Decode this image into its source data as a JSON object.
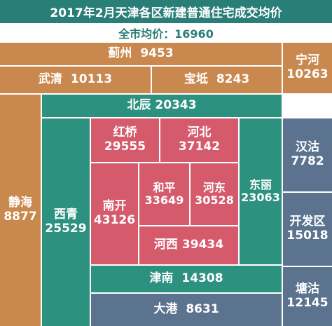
{
  "title": "2017年2月天津各区新建普通住宅成交均价",
  "subtitle": "全市均价：16960",
  "colors": {
    "header": "#2a7e78",
    "outer_ring": "#c8884e",
    "middle_ring": "#2d9180",
    "core": "#d45a6c",
    "right_column": "#5c7390"
  },
  "districts": {
    "jizhou": {
      "name": "蓟州",
      "price": "9453"
    },
    "wuqing": {
      "name": "武清",
      "price": "10113"
    },
    "baodi": {
      "name": "宝坻",
      "price": "8243"
    },
    "ninghe": {
      "name": "宁河",
      "price": "10263"
    },
    "beichen": {
      "name": "北辰",
      "price": "20343"
    },
    "jinghai": {
      "name": "静海",
      "price": "8877"
    },
    "xiqing": {
      "name": "西青",
      "price": "25529"
    },
    "hongqiao": {
      "name": "红桥",
      "price": "29555"
    },
    "hebei": {
      "name": "河北",
      "price": "37142"
    },
    "nankai": {
      "name": "南开",
      "price": "43126"
    },
    "heping": {
      "name": "和平",
      "price": "33649"
    },
    "hedong": {
      "name": "河东",
      "price": "30528"
    },
    "hexi": {
      "name": "河西",
      "price": "39434"
    },
    "dongli": {
      "name": "东丽",
      "price": "23063"
    },
    "jinnan": {
      "name": "津南",
      "price": "14308"
    },
    "dagang": {
      "name": "大港",
      "price": "8631"
    },
    "hangu": {
      "name": "汉沽",
      "price": "7782"
    },
    "kaifaqu": {
      "name": "开发区",
      "price": "15018"
    },
    "tanggu": {
      "name": "塘沽",
      "price": "12145"
    }
  }
}
